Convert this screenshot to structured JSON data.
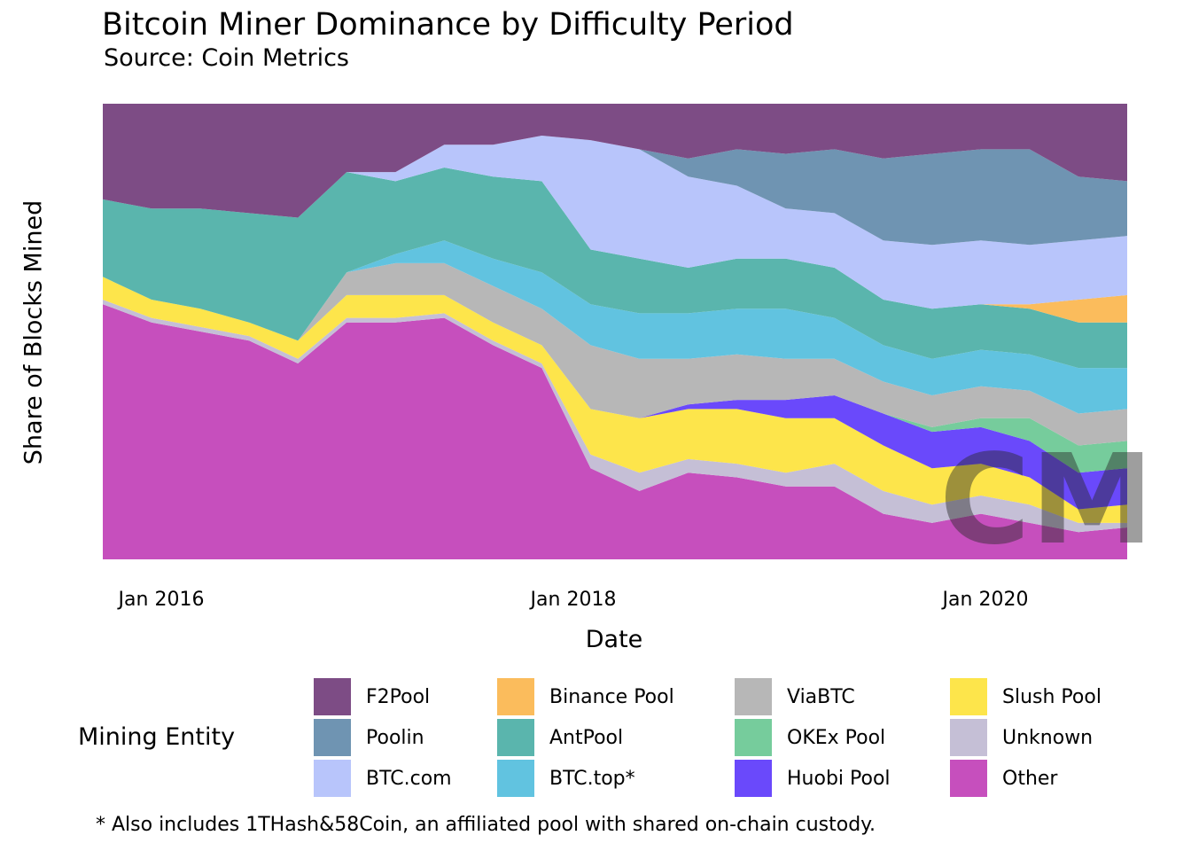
{
  "chart_data": {
    "type": "area",
    "stacked": "percent",
    "title": "Bitcoin Miner Dominance by Difficulty Period",
    "subtitle": "Source: Coin Metrics",
    "xlabel": "Date",
    "ylabel": "Share of Blocks Mined",
    "x_ticks": [
      "Jan 2016",
      "Jan 2018",
      "Jan 2020"
    ],
    "xlim": [
      "2015-07",
      "2020-09"
    ],
    "ylim": [
      0,
      1
    ],
    "legend_title": "Mining Entity",
    "legend_position": "bottom",
    "footnote": "* Also includes 1THash&58Coin, an affiliated pool with shared on-chain custody.",
    "watermark": "CM",
    "x": [
      "2015-07",
      "2015-10",
      "2016-01",
      "2016-04",
      "2016-07",
      "2016-10",
      "2017-01",
      "2017-04",
      "2017-07",
      "2017-10",
      "2018-01",
      "2018-04",
      "2018-07",
      "2018-10",
      "2019-01",
      "2019-04",
      "2019-07",
      "2019-10",
      "2020-01",
      "2020-04",
      "2020-07",
      "2020-09"
    ],
    "series": [
      {
        "name": "Other",
        "color": "#c64fbd",
        "values": [
          0.56,
          0.52,
          0.5,
          0.48,
          0.43,
          0.52,
          0.52,
          0.53,
          0.47,
          0.42,
          0.2,
          0.15,
          0.19,
          0.18,
          0.16,
          0.16,
          0.1,
          0.08,
          0.1,
          0.08,
          0.06,
          0.07
        ]
      },
      {
        "name": "Unknown",
        "color": "#c5bfd6",
        "values": [
          0.01,
          0.01,
          0.01,
          0.01,
          0.01,
          0.01,
          0.01,
          0.01,
          0.01,
          0.01,
          0.03,
          0.04,
          0.03,
          0.03,
          0.03,
          0.05,
          0.05,
          0.04,
          0.04,
          0.04,
          0.02,
          0.01
        ]
      },
      {
        "name": "Slush Pool",
        "color": "#fde54b",
        "values": [
          0.05,
          0.04,
          0.04,
          0.03,
          0.04,
          0.05,
          0.05,
          0.04,
          0.04,
          0.04,
          0.1,
          0.12,
          0.11,
          0.12,
          0.12,
          0.1,
          0.1,
          0.08,
          0.07,
          0.06,
          0.03,
          0.04
        ]
      },
      {
        "name": "Huobi Pool",
        "color": "#6a49fb",
        "values": [
          0,
          0,
          0,
          0,
          0,
          0,
          0,
          0,
          0,
          0,
          0,
          0,
          0.01,
          0.02,
          0.04,
          0.05,
          0.07,
          0.08,
          0.08,
          0.08,
          0.08,
          0.08
        ]
      },
      {
        "name": "OKEx Pool",
        "color": "#76cc9c",
        "values": [
          0,
          0,
          0,
          0,
          0,
          0,
          0,
          0,
          0,
          0,
          0,
          0,
          0,
          0,
          0,
          0,
          0,
          0.01,
          0.02,
          0.05,
          0.06,
          0.06
        ]
      },
      {
        "name": "ViaBTC",
        "color": "#b7b7b7",
        "values": [
          0,
          0,
          0,
          0,
          0,
          0.05,
          0.07,
          0.07,
          0.08,
          0.08,
          0.14,
          0.13,
          0.1,
          0.1,
          0.09,
          0.08,
          0.07,
          0.07,
          0.07,
          0.06,
          0.07,
          0.07
        ]
      },
      {
        "name": "BTC.top*",
        "color": "#61c3e0",
        "values": [
          0,
          0,
          0,
          0,
          0,
          0,
          0.02,
          0.05,
          0.06,
          0.08,
          0.09,
          0.1,
          0.1,
          0.1,
          0.11,
          0.09,
          0.08,
          0.08,
          0.08,
          0.08,
          0.1,
          0.09
        ]
      },
      {
        "name": "AntPool",
        "color": "#5ab5ad",
        "values": [
          0.17,
          0.2,
          0.22,
          0.24,
          0.27,
          0.22,
          0.16,
          0.16,
          0.18,
          0.2,
          0.12,
          0.12,
          0.1,
          0.11,
          0.11,
          0.11,
          0.1,
          0.11,
          0.1,
          0.1,
          0.1,
          0.1
        ]
      },
      {
        "name": "Binance Pool",
        "color": "#fbbc5c",
        "values": [
          0,
          0,
          0,
          0,
          0,
          0,
          0,
          0,
          0,
          0,
          0,
          0,
          0,
          0,
          0,
          0,
          0,
          0,
          0,
          0.01,
          0.05,
          0.06
        ]
      },
      {
        "name": "BTC.com",
        "color": "#b8c5fb",
        "values": [
          0,
          0,
          0,
          0,
          0,
          0,
          0.02,
          0.05,
          0.07,
          0.1,
          0.24,
          0.24,
          0.2,
          0.16,
          0.11,
          0.12,
          0.13,
          0.14,
          0.14,
          0.13,
          0.13,
          0.13
        ]
      },
      {
        "name": "Poolin",
        "color": "#6f94b2",
        "values": [
          0,
          0,
          0,
          0,
          0,
          0,
          0,
          0,
          0,
          0,
          0,
          0,
          0.04,
          0.08,
          0.12,
          0.14,
          0.18,
          0.2,
          0.2,
          0.21,
          0.14,
          0.12
        ]
      },
      {
        "name": "F2Pool",
        "color": "#7d4c85",
        "values": [
          0.21,
          0.23,
          0.23,
          0.24,
          0.25,
          0.15,
          0.15,
          0.09,
          0.09,
          0.07,
          0.08,
          0.1,
          0.12,
          0.1,
          0.11,
          0.1,
          0.12,
          0.11,
          0.1,
          0.1,
          0.16,
          0.17
        ]
      }
    ],
    "legend_layout": [
      [
        "F2Pool",
        "Poolin",
        "BTC.com"
      ],
      [
        "Binance Pool",
        "AntPool",
        "BTC.top*"
      ],
      [
        "ViaBTC",
        "OKEx Pool",
        "Huobi Pool"
      ],
      [
        "Slush Pool",
        "Unknown",
        "Other"
      ]
    ]
  }
}
